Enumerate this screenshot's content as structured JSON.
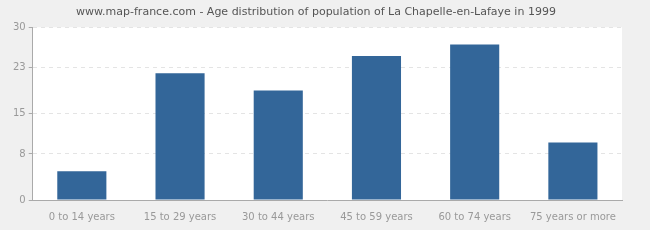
{
  "chart_data": {
    "type": "bar",
    "title": "www.map-france.com - Age distribution of population of La Chapelle-en-Lafaye in 1999",
    "categories": [
      "0 to 14 years",
      "15 to 29 years",
      "30 to 44 years",
      "45 to 59 years",
      "60 to 74 years",
      "75 years or more"
    ],
    "values": [
      5,
      22,
      19,
      25,
      27,
      10
    ],
    "color": "#336699",
    "ylim": [
      0,
      30
    ],
    "yticks": [
      0,
      8,
      15,
      23,
      30
    ],
    "grid": true
  }
}
